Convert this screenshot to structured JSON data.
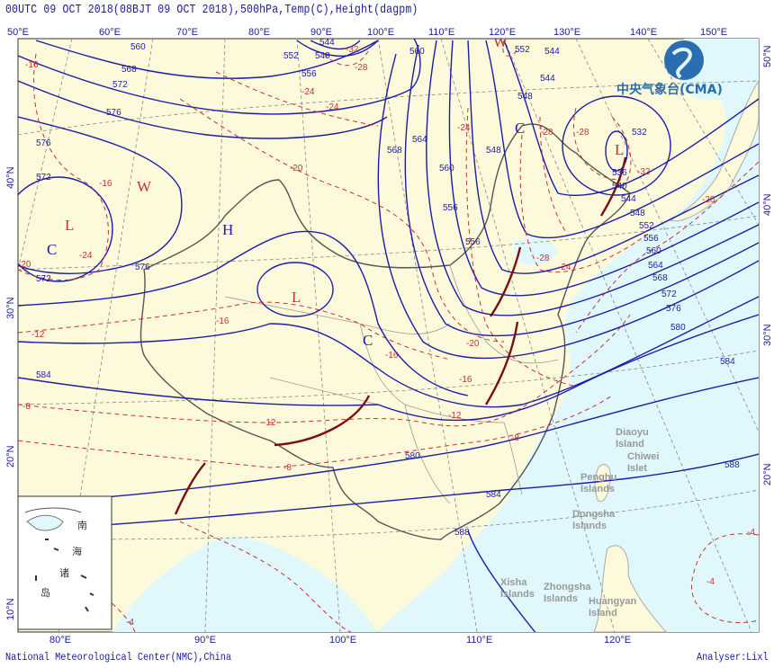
{
  "header": {
    "title": "00UTC 09  OCT 2018(08BJT 09  OCT 2018),500hPa,Temp(C),Height(dagpm)"
  },
  "footer": {
    "left": "National Meteorological Center(NMC),China",
    "right": "Analyser:Lixl"
  },
  "logo": {
    "text": "中央气象台(CMA)"
  },
  "colors": {
    "land": "#fdfadc",
    "sea": "#e0f8fc",
    "height_contour": "#1c1ca8",
    "temperature_contour": "#c83030",
    "trough_line": "#7a1010"
  },
  "axes": {
    "top_lon": [
      "50°E",
      "60°E",
      "70°E",
      "80°E",
      "90°E",
      "100°E",
      "110°E",
      "120°E",
      "130°E",
      "140°E",
      "150°E"
    ],
    "bottom_lon": [
      "80°E",
      "90°E",
      "100°E",
      "110°E",
      "120°E"
    ],
    "left_lat": [
      "40°N",
      "30°N",
      "20°N",
      "10°N"
    ],
    "right_lat": [
      "50°N",
      "40°N",
      "30°N",
      "20°N"
    ]
  },
  "height_labels": [
    "560",
    "568",
    "572",
    "576",
    "576",
    "572",
    "584",
    "576",
    "572",
    "568",
    "564",
    "560",
    "556",
    "548",
    "544",
    "552",
    "556",
    "548",
    "544",
    "532",
    "536",
    "540",
    "544",
    "548",
    "552",
    "556",
    "560",
    "564",
    "568",
    "572",
    "576",
    "580",
    "584",
    "580",
    "584",
    "588",
    "588",
    "560",
    "552",
    "556",
    "544",
    "548"
  ],
  "temp_labels": [
    "-16",
    "-24",
    "-32",
    "-28",
    "-24",
    "-20",
    "-16",
    "-20",
    "-24",
    "-16",
    "-12",
    "-8",
    "-12",
    "-8",
    "-12",
    "-16",
    "-20",
    "-24",
    "-28",
    "-28",
    "-28",
    "-32",
    "-20",
    "-24",
    "-16",
    "-8",
    "-4",
    "-4",
    "-4"
  ],
  "systems": [
    {
      "letter": "W",
      "type": "warm"
    },
    {
      "letter": "H",
      "type": "high"
    },
    {
      "letter": "L",
      "type": "low"
    },
    {
      "letter": "C",
      "type": "cold"
    },
    {
      "letter": "L",
      "type": "low"
    },
    {
      "letter": "C",
      "type": "cold"
    },
    {
      "letter": "C",
      "type": "cold"
    },
    {
      "letter": "W",
      "type": "warm"
    },
    {
      "letter": "L",
      "type": "low"
    }
  ],
  "islands": [
    {
      "name": "Diaoyu",
      "name2": "Island"
    },
    {
      "name": "Chiwei",
      "name2": "Islet"
    },
    {
      "name": "Penghu",
      "name2": "Islands"
    },
    {
      "name": "Dongsha",
      "name2": "Islands"
    },
    {
      "name": "Xisha",
      "name2": "Islands"
    },
    {
      "name": "Zhongsha",
      "name2": "Islands"
    },
    {
      "name": "Huangyan",
      "name2": "Island"
    }
  ],
  "inset": {
    "chars": [
      "南",
      "海",
      "诸",
      "岛"
    ]
  }
}
